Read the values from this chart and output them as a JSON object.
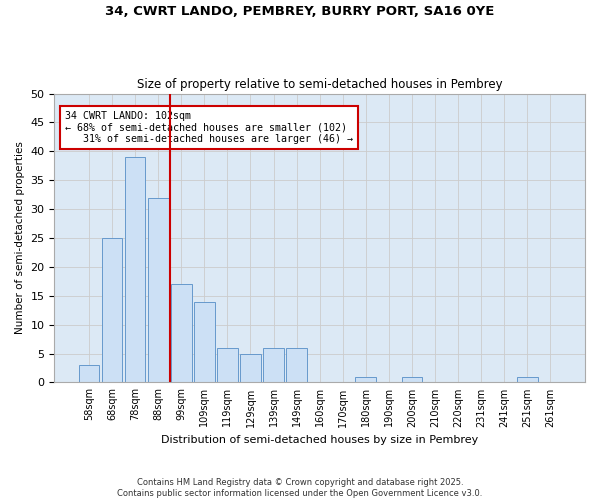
{
  "title1": "34, CWRT LANDO, PEMBREY, BURRY PORT, SA16 0YE",
  "title2": "Size of property relative to semi-detached houses in Pembrey",
  "xlabel": "Distribution of semi-detached houses by size in Pembrey",
  "ylabel": "Number of semi-detached properties",
  "categories": [
    "58sqm",
    "68sqm",
    "78sqm",
    "88sqm",
    "99sqm",
    "109sqm",
    "119sqm",
    "129sqm",
    "139sqm",
    "149sqm",
    "160sqm",
    "170sqm",
    "180sqm",
    "190sqm",
    "200sqm",
    "210sqm",
    "220sqm",
    "231sqm",
    "241sqm",
    "251sqm",
    "261sqm"
  ],
  "values": [
    3,
    25,
    39,
    32,
    17,
    14,
    6,
    5,
    6,
    6,
    0,
    0,
    1,
    0,
    1,
    0,
    0,
    0,
    0,
    1,
    0
  ],
  "bar_color": "#cce0f5",
  "bar_edge_color": "#6699cc",
  "grid_color": "#cccccc",
  "bg_color": "#dce9f5",
  "vline_color": "#cc0000",
  "annotation_line1": "34 CWRT LANDO: 102sqm",
  "annotation_line2": "← 68% of semi-detached houses are smaller (102)",
  "annotation_line3": "   31% of semi-detached houses are larger (46) →",
  "annotation_box_color": "#cc0000",
  "footer": "Contains HM Land Registry data © Crown copyright and database right 2025.\nContains public sector information licensed under the Open Government Licence v3.0.",
  "ylim": [
    0,
    50
  ],
  "yticks": [
    0,
    5,
    10,
    15,
    20,
    25,
    30,
    35,
    40,
    45,
    50
  ],
  "fig_bg": "#ffffff"
}
